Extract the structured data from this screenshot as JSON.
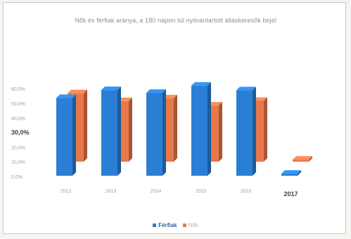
{
  "chart_data": {
    "type": "bar",
    "title": "Nők és férfiak aránya, a 180 napon túl nyilvántartott álláskeresők bejel",
    "categories": [
      "2012",
      "2013",
      "2014",
      "2015",
      "2016",
      "2017"
    ],
    "series": [
      {
        "name": "Férfiak",
        "values": [
          53.2,
          58.6,
          56.7,
          61.6,
          58.4,
          1.4
        ],
        "color": "#2a7fd4"
      },
      {
        "name": "Nők",
        "values": [
          46.8,
          41.4,
          43.3,
          38.4,
          41.6,
          1.4
        ],
        "color": "#e8784a"
      }
    ],
    "yticks": [
      "0,0%",
      "10,0%",
      "20,0%",
      "30,0%",
      "40,0%",
      "50,0%",
      "60,0%"
    ],
    "ylim": [
      0,
      60
    ],
    "grid": false,
    "legend_position": "bottom"
  }
}
